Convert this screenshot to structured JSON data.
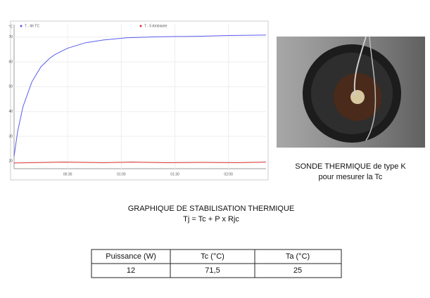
{
  "chart_data": {
    "type": "line",
    "y_axis_unit": "°C",
    "xlim": [
      0,
      141
    ],
    "ylim": [
      17,
      75
    ],
    "xticks": [
      {
        "value": 30,
        "label": "00:30"
      },
      {
        "value": 60,
        "label": "01:00"
      },
      {
        "value": 90,
        "label": "01:30"
      },
      {
        "value": 120,
        "label": "02:00"
      }
    ],
    "yticks": [
      20,
      30,
      40,
      50,
      60,
      70
    ],
    "grid": true,
    "series": [
      {
        "name": "T - Ité TC",
        "color": "#5b5bf0",
        "x": [
          0,
          2,
          5,
          10,
          15,
          20,
          23,
          30,
          40,
          50,
          63,
          80,
          103,
          120,
          141
        ],
        "values": [
          22,
          32,
          42,
          52,
          58,
          61.5,
          63,
          65.5,
          67.7,
          68.8,
          69.7,
          70.1,
          70.3,
          70.6,
          70.8
        ]
      },
      {
        "name": "T - 5 Ambiante",
        "color": "#e03030",
        "x": [
          0,
          28,
          50,
          66,
          85,
          105,
          125,
          141
        ],
        "values": [
          19.3,
          19.6,
          19.4,
          19.6,
          19.4,
          19.5,
          19.4,
          19.6
        ]
      }
    ]
  },
  "photo_caption": [
    "SONDE THERMIQUE de type K",
    "pour mesurer la Tc"
  ],
  "heading": [
    "GRAPHIQUE DE STABILISATION THERMIQUE",
    "Tj = Tc + P x Rjc"
  ],
  "table": {
    "header": [
      "Puissance (W)",
      "Tc (°C)",
      "Ta (°C)"
    ],
    "rows": [
      [
        "12",
        "71,5",
        "25"
      ]
    ]
  }
}
